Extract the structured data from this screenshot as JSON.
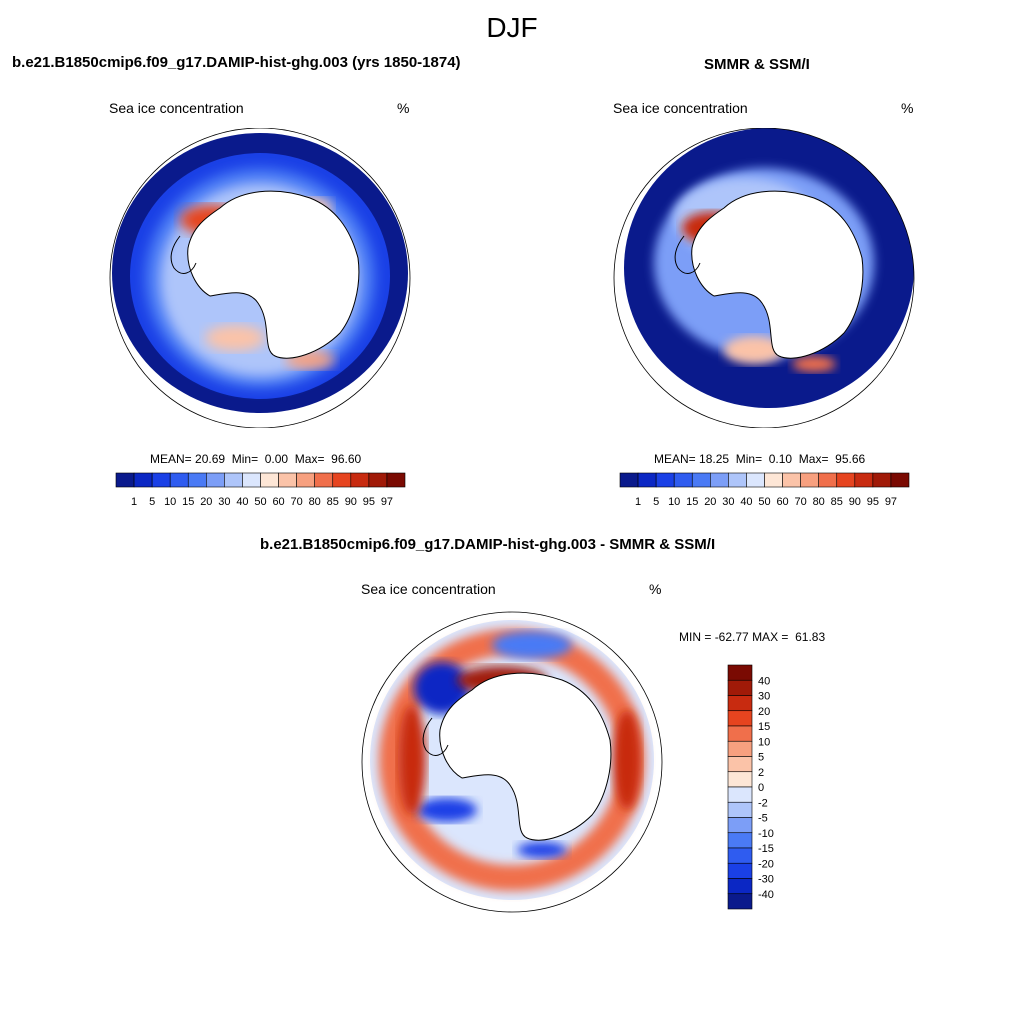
{
  "figure": {
    "season": "DJF"
  },
  "panels": [
    {
      "id": "model",
      "title": "b.e21.B1850cmip6.f09_g17.DAMIP-hist-ghg.003 (yrs 1850-1874)",
      "variable": "Sea ice concentration",
      "units": "%",
      "stats": {
        "mean": "20.69",
        "min": "0.00",
        "max": "96.60"
      },
      "stats_labels": {
        "mean": "MEAN=",
        "min": "Min=",
        "max": "Max="
      }
    },
    {
      "id": "obs",
      "title": "SMMR & SSM/I",
      "variable": "Sea ice concentration",
      "units": "%",
      "stats": {
        "mean": "18.25",
        "min": "0.10",
        "max": "95.66"
      },
      "stats_labels": {
        "mean": "MEAN=",
        "min": "Min=",
        "max": "Max="
      }
    },
    {
      "id": "diff",
      "title": "b.e21.B1850cmip6.f09_g17.DAMIP-hist-ghg.003 - SMMR & SSM/I",
      "variable": "Sea ice concentration",
      "units": "%",
      "stats": {
        "min": "-62.77",
        "max": "61.83"
      },
      "stats_labels": {
        "min": "MIN =",
        "max": "MAX ="
      }
    }
  ],
  "colorbars": {
    "concentration": {
      "orientation": "horizontal",
      "levels": [
        "1",
        "5",
        "10",
        "15",
        "20",
        "30",
        "40",
        "50",
        "60",
        "70",
        "80",
        "85",
        "90",
        "95",
        "97"
      ],
      "colors": [
        "#0a1a8c",
        "#0b27c4",
        "#1a40e6",
        "#2f5cf0",
        "#4a7af5",
        "#7c9ef7",
        "#aec5fa",
        "#dbe6fd",
        "#fde6d6",
        "#fbc3a8",
        "#f7a07f",
        "#f06f4b",
        "#e6441f",
        "#c82b10",
        "#a01a08",
        "#7a0a02"
      ]
    },
    "difference": {
      "orientation": "vertical",
      "levels": [
        "40",
        "30",
        "20",
        "15",
        "10",
        "5",
        "2",
        "0",
        "-2",
        "-5",
        "-10",
        "-15",
        "-20",
        "-30",
        "-40"
      ],
      "colors": [
        "#7a0a02",
        "#a01a08",
        "#c82b10",
        "#e6441f",
        "#f06f4b",
        "#f7a07f",
        "#fbc3a8",
        "#fde6d6",
        "#dbe6fd",
        "#aec5fa",
        "#7c9ef7",
        "#4a7af5",
        "#2f5cf0",
        "#1a40e6",
        "#0b27c4",
        "#0a1a8c"
      ]
    }
  }
}
